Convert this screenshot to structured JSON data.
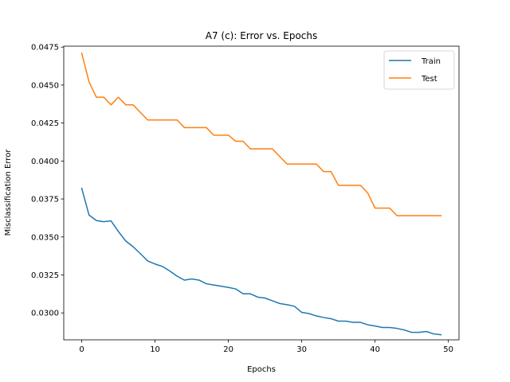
{
  "chart_data": {
    "type": "line",
    "title": "A7 (c): Error vs. Epochs",
    "xlabel": "Epochs",
    "ylabel": "Misclassification Error",
    "xlim": [
      -2.45,
      51.45
    ],
    "ylim": [
      0.02823,
      0.04756
    ],
    "xticks": [
      0,
      10,
      20,
      30,
      40,
      50
    ],
    "xtick_labels": [
      "0",
      "10",
      "20",
      "30",
      "40",
      "50"
    ],
    "yticks": [
      0.03,
      0.0325,
      0.035,
      0.0375,
      0.04,
      0.0425,
      0.045,
      0.0475
    ],
    "ytick_labels": [
      "0.0300",
      "0.0325",
      "0.0350",
      "0.0375",
      "0.0400",
      "0.0425",
      "0.0450",
      "0.0475"
    ],
    "grid": false,
    "legend_position": "top-right",
    "x": [
      0,
      1,
      2,
      3,
      4,
      5,
      6,
      7,
      8,
      9,
      10,
      11,
      12,
      13,
      14,
      15,
      16,
      17,
      18,
      19,
      20,
      21,
      22,
      23,
      24,
      25,
      26,
      27,
      28,
      29,
      30,
      31,
      32,
      33,
      34,
      35,
      36,
      37,
      38,
      39,
      40,
      41,
      42,
      43,
      44,
      45,
      46,
      47,
      48,
      49
    ],
    "series": [
      {
        "name": "Train",
        "color": "#1f77b4",
        "values": [
          0.0382,
          0.03644,
          0.03608,
          0.036,
          0.03606,
          0.03536,
          0.03474,
          0.03436,
          0.0339,
          0.03342,
          0.03322,
          0.03306,
          0.03276,
          0.03242,
          0.03216,
          0.03224,
          0.03216,
          0.03192,
          0.03184,
          0.03176,
          0.03168,
          0.03158,
          0.03126,
          0.03126,
          0.03104,
          0.03098,
          0.0308,
          0.03062,
          0.03054,
          0.03044,
          0.03004,
          0.02996,
          0.0298,
          0.0297,
          0.02962,
          0.02946,
          0.02946,
          0.02938,
          0.02938,
          0.02922,
          0.02914,
          0.02904,
          0.02904,
          0.02898,
          0.02888,
          0.02872,
          0.02872,
          0.02878,
          0.02862,
          0.02856
        ]
      },
      {
        "name": "Test",
        "color": "#ff7f0e",
        "values": [
          0.0471,
          0.0452,
          0.0442,
          0.0442,
          0.0437,
          0.0442,
          0.0437,
          0.0437,
          0.0432,
          0.0427,
          0.0427,
          0.0427,
          0.0427,
          0.0427,
          0.0422,
          0.0422,
          0.0422,
          0.0422,
          0.0417,
          0.0417,
          0.0417,
          0.0413,
          0.0413,
          0.0408,
          0.0408,
          0.0408,
          0.0408,
          0.0403,
          0.0398,
          0.0398,
          0.0398,
          0.0398,
          0.0398,
          0.0393,
          0.0393,
          0.0384,
          0.0384,
          0.0384,
          0.0384,
          0.0379,
          0.0369,
          0.0369,
          0.0369,
          0.0364,
          0.0364,
          0.0364,
          0.0364,
          0.0364,
          0.0364,
          0.0364
        ]
      }
    ]
  }
}
